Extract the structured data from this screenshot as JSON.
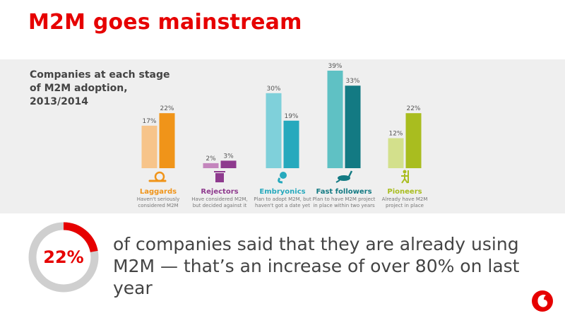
{
  "slide": {
    "title": "M2M goes mainstream",
    "stat_value": "22%",
    "stat_fraction": 0.22,
    "stat_text": "of companies said that they are already using M2M  — that’s an increase of over 80% on last year"
  },
  "colors": {
    "brand_red": "#e60000",
    "laggards": [
      "#f7c48a",
      "#f09419"
    ],
    "rejectors": [
      "#c486bd",
      "#8e3a8e"
    ],
    "embryonics": [
      "#7fd0da",
      "#26a9bd"
    ],
    "fast_followers": [
      "#5fc1c4",
      "#137a83"
    ],
    "pioneers": [
      "#d3e08c",
      "#a9bd1f"
    ]
  },
  "chart_data": {
    "type": "bar",
    "title": "Companies at each stage of M2M adoption, 2013/2014",
    "categories": [
      "Laggards",
      "Rejectors",
      "Embryonics",
      "Fast followers",
      "Pioneers"
    ],
    "category_descriptions": [
      [
        "Haven't seriously",
        "considered M2M"
      ],
      [
        "Have considered M2M,",
        "but decided against it"
      ],
      [
        "Plan to adopt M2M, but",
        "haven't got a date yet"
      ],
      [
        "Plan to have M2M project",
        "in place within two years"
      ],
      [
        "Already have M2M",
        "project in place"
      ]
    ],
    "category_icons": [
      "snail-icon",
      "trash-bin-icon",
      "embryo-icon",
      "rabbit-icon",
      "explorer-icon"
    ],
    "series": [
      {
        "values": [
          17,
          2,
          30,
          39,
          12
        ]
      },
      {
        "values": [
          22,
          3,
          19,
          33,
          22
        ]
      }
    ],
    "value_labels": [
      [
        "17%",
        "2%",
        "30%",
        "39%",
        "12%"
      ],
      [
        "22%",
        "3%",
        "19%",
        "33%",
        "22%"
      ]
    ],
    "ylim": [
      0,
      39
    ],
    "grid": false,
    "legend": "none"
  }
}
